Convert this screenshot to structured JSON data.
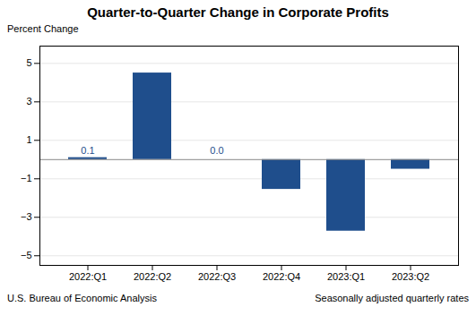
{
  "chart_data": {
    "type": "bar",
    "title": "Quarter-to-Quarter Change in Corporate Profits",
    "ylabel": "Percent Change",
    "categories": [
      "2022:Q1",
      "2022:Q2",
      "2022:Q3",
      "2022:Q4",
      "2023:Q1",
      "2023:Q2"
    ],
    "values": [
      0.1,
      4.5,
      0.0,
      -1.55,
      -3.72,
      -0.5
    ],
    "value_labels": [
      "0.1",
      null,
      "0.0",
      null,
      null,
      null
    ],
    "color": "#1F4E8C",
    "ylim": [
      -5.5,
      5.9
    ],
    "yticks": [
      -5,
      -3,
      -1,
      1,
      3,
      5
    ],
    "grid": true,
    "annotations": [
      "U.S. Bureau of Economic Analysis",
      "Seasonally adjusted quarterly rates"
    ]
  }
}
